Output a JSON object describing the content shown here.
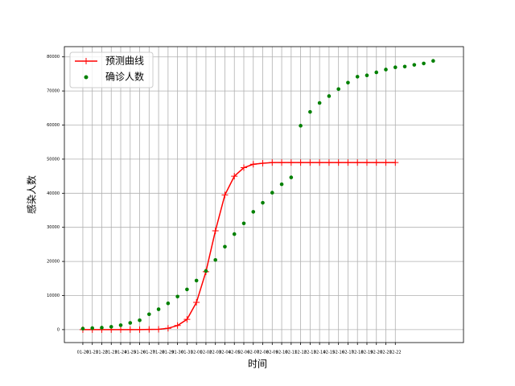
{
  "chart_data": {
    "type": "line",
    "xlabel": "时间",
    "ylabel": "感染人数",
    "xlim": [
      -1.95,
      40.2
    ],
    "ylim": [
      -3800,
      83000
    ],
    "xticks": [
      {
        "value": 0,
        "label": "01-20"
      },
      {
        "value": 1,
        "label": "01-21"
      },
      {
        "value": 2,
        "label": "01-22"
      },
      {
        "value": 3,
        "label": "01-23"
      },
      {
        "value": 4,
        "label": "01-24"
      },
      {
        "value": 5,
        "label": "01-25"
      },
      {
        "value": 6,
        "label": "01-26"
      },
      {
        "value": 7,
        "label": "01-27"
      },
      {
        "value": 8,
        "label": "01-28"
      },
      {
        "value": 9,
        "label": "01-29"
      },
      {
        "value": 10,
        "label": "01-30"
      },
      {
        "value": 11,
        "label": "01-31"
      },
      {
        "value": 12,
        "label": "02-01"
      },
      {
        "value": 13,
        "label": "02-02"
      },
      {
        "value": 14,
        "label": "02-03"
      },
      {
        "value": 15,
        "label": "02-04"
      },
      {
        "value": 16,
        "label": "02-05"
      },
      {
        "value": 17,
        "label": "02-06"
      },
      {
        "value": 18,
        "label": "02-07"
      },
      {
        "value": 19,
        "label": "02-08"
      },
      {
        "value": 20,
        "label": "02-09"
      },
      {
        "value": 21,
        "label": "02-10"
      },
      {
        "value": 22,
        "label": "02-11"
      },
      {
        "value": 23,
        "label": "02-12"
      },
      {
        "value": 24,
        "label": "02-13"
      },
      {
        "value": 25,
        "label": "02-14"
      },
      {
        "value": 26,
        "label": "02-15"
      },
      {
        "value": 27,
        "label": "02-16"
      },
      {
        "value": 28,
        "label": "02-17"
      },
      {
        "value": 29,
        "label": "02-18"
      },
      {
        "value": 30,
        "label": "02-19"
      },
      {
        "value": 31,
        "label": "02-20"
      },
      {
        "value": 32,
        "label": "02-21"
      },
      {
        "value": 33,
        "label": "02-22"
      }
    ],
    "yticks": [
      0,
      10000,
      20000,
      30000,
      40000,
      50000,
      60000,
      70000,
      80000
    ],
    "grid": true,
    "legend": "upper left",
    "series": [
      {
        "name": "预测曲线",
        "type": "line",
        "marker": "+",
        "color": "#ff0000",
        "x": [
          0,
          1,
          2,
          3,
          4,
          5,
          6,
          7,
          8,
          9,
          10,
          11,
          12,
          13,
          14,
          15,
          16,
          17,
          18,
          19,
          20,
          21,
          22,
          23,
          24,
          25,
          26,
          27,
          28,
          29,
          30,
          31,
          32,
          33
        ],
        "values": [
          0,
          0,
          0,
          0,
          0,
          0,
          0,
          50,
          100,
          400,
          1200,
          3000,
          8000,
          17000,
          29000,
          39500,
          45000,
          47500,
          48500,
          48800,
          49000,
          49000,
          49000,
          49000,
          49000,
          49000,
          49000,
          49000,
          49000,
          49000,
          49000,
          49000,
          49000,
          49000
        ]
      },
      {
        "name": "确诊人数",
        "type": "scatter",
        "color": "#008000",
        "x": [
          0,
          1,
          2,
          3,
          4,
          5,
          6,
          7,
          8,
          9,
          10,
          11,
          12,
          13,
          14,
          15,
          16,
          17,
          18,
          19,
          20,
          21,
          22,
          23,
          24,
          25,
          26,
          27,
          28,
          29,
          30,
          31,
          32,
          33,
          34,
          35,
          36,
          37
        ],
        "values": [
          291,
          440,
          571,
          830,
          1287,
          1975,
          2744,
          4515,
          5974,
          7711,
          9692,
          11791,
          14380,
          17205,
          20438,
          24324,
          28018,
          31161,
          34546,
          37198,
          40171,
          42638,
          44653,
          59804,
          63851,
          66492,
          68500,
          70548,
          72436,
          74185,
          74576,
          75465,
          76288,
          76936,
          77150,
          77658,
          78064,
          78824
        ]
      }
    ]
  }
}
